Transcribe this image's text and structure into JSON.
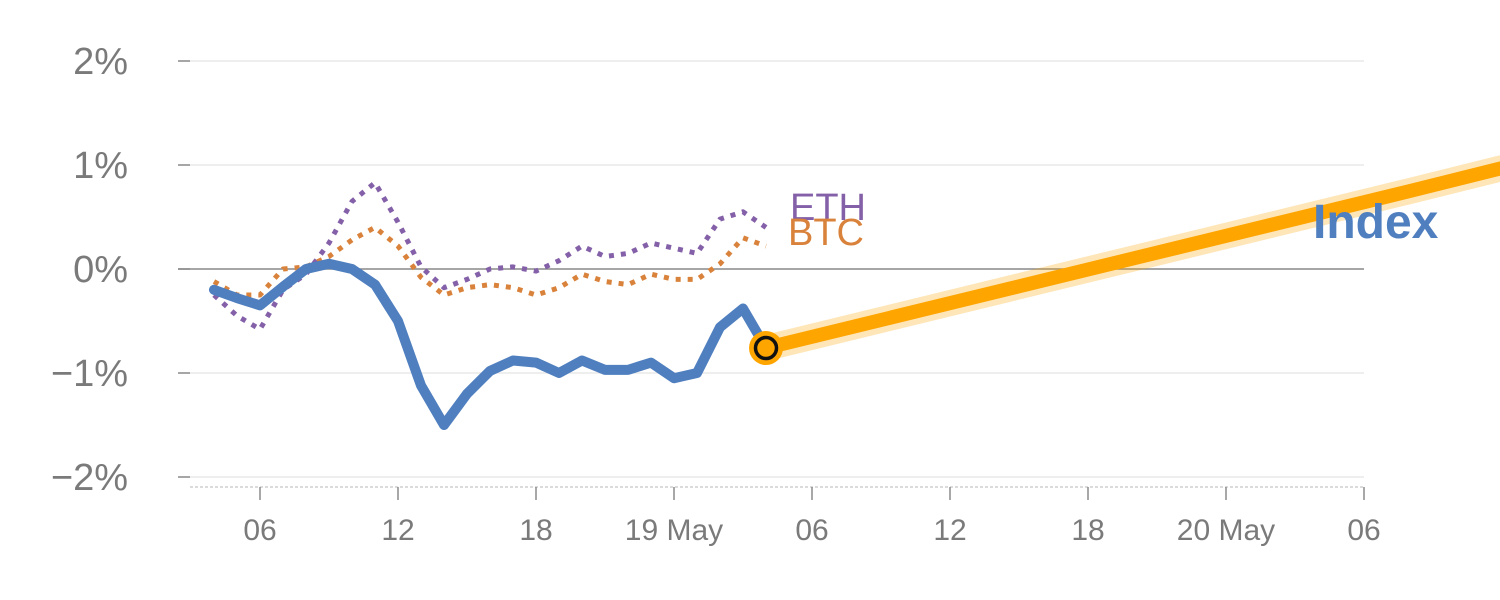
{
  "chart_data": {
    "type": "line",
    "x_unit": "hour",
    "x_tick_labels": [
      "06",
      "12",
      "18",
      "19 May",
      "06",
      "12",
      "18",
      "20 May",
      "06"
    ],
    "y_tick_labels": [
      "2%",
      "1%",
      "0%",
      "−1%",
      "−2%"
    ],
    "ylim": [
      -2.0,
      2.0
    ],
    "y_ticks": [
      2,
      1,
      0,
      -1,
      -2
    ],
    "grid": true,
    "series": [
      {
        "name": "Index",
        "color": "#4f7fbf",
        "style": "solid",
        "x": [
          4,
          5,
          6,
          7,
          8,
          9,
          10,
          11,
          12,
          13,
          14,
          15,
          16,
          17,
          18,
          19,
          20,
          21,
          22,
          23,
          24,
          25,
          26,
          27,
          28
        ],
        "values": [
          -0.2,
          -0.28,
          -0.35,
          -0.17,
          0.0,
          0.05,
          0.0,
          -0.15,
          -0.5,
          -1.12,
          -1.5,
          -1.2,
          -0.98,
          -0.88,
          -0.9,
          -1.0,
          -0.88,
          -0.97,
          -0.97,
          -0.9,
          -1.05,
          -1.0,
          -0.56,
          -0.38,
          -0.76
        ]
      },
      {
        "name": "BTC",
        "color": "#d9823b",
        "style": "dotted",
        "x": [
          4,
          5,
          6,
          7,
          8,
          9,
          10,
          11,
          12,
          13,
          14,
          15,
          16,
          17,
          18,
          19,
          20,
          21,
          22,
          23,
          24,
          25,
          26,
          27,
          28
        ],
        "values": [
          -0.12,
          -0.25,
          -0.25,
          0.0,
          0.02,
          0.12,
          0.28,
          0.4,
          0.22,
          -0.08,
          -0.25,
          -0.18,
          -0.15,
          -0.18,
          -0.25,
          -0.18,
          -0.05,
          -0.12,
          -0.15,
          -0.05,
          -0.1,
          -0.1,
          0.05,
          0.3,
          0.22
        ]
      },
      {
        "name": "ETH",
        "color": "#8460a8",
        "style": "dotted",
        "x": [
          4,
          5,
          6,
          7,
          8,
          9,
          10,
          11,
          12,
          13,
          14,
          15,
          16,
          17,
          18,
          19,
          20,
          21,
          22,
          23,
          24,
          25,
          26,
          27,
          28
        ],
        "values": [
          -0.25,
          -0.45,
          -0.58,
          -0.2,
          -0.05,
          0.25,
          0.65,
          0.83,
          0.45,
          0.02,
          -0.18,
          -0.1,
          0.0,
          0.02,
          -0.02,
          0.08,
          0.22,
          0.12,
          0.15,
          0.25,
          0.2,
          0.15,
          0.48,
          0.55,
          0.4
        ]
      }
    ],
    "projection": {
      "color": "#ffa500",
      "x": [
        28,
        56,
        60
      ],
      "values": [
        -0.76,
        0.75,
        0.97
      ]
    },
    "current_point": {
      "x": 28,
      "value": -0.76
    },
    "annotations": {
      "index_label": "Index"
    }
  }
}
